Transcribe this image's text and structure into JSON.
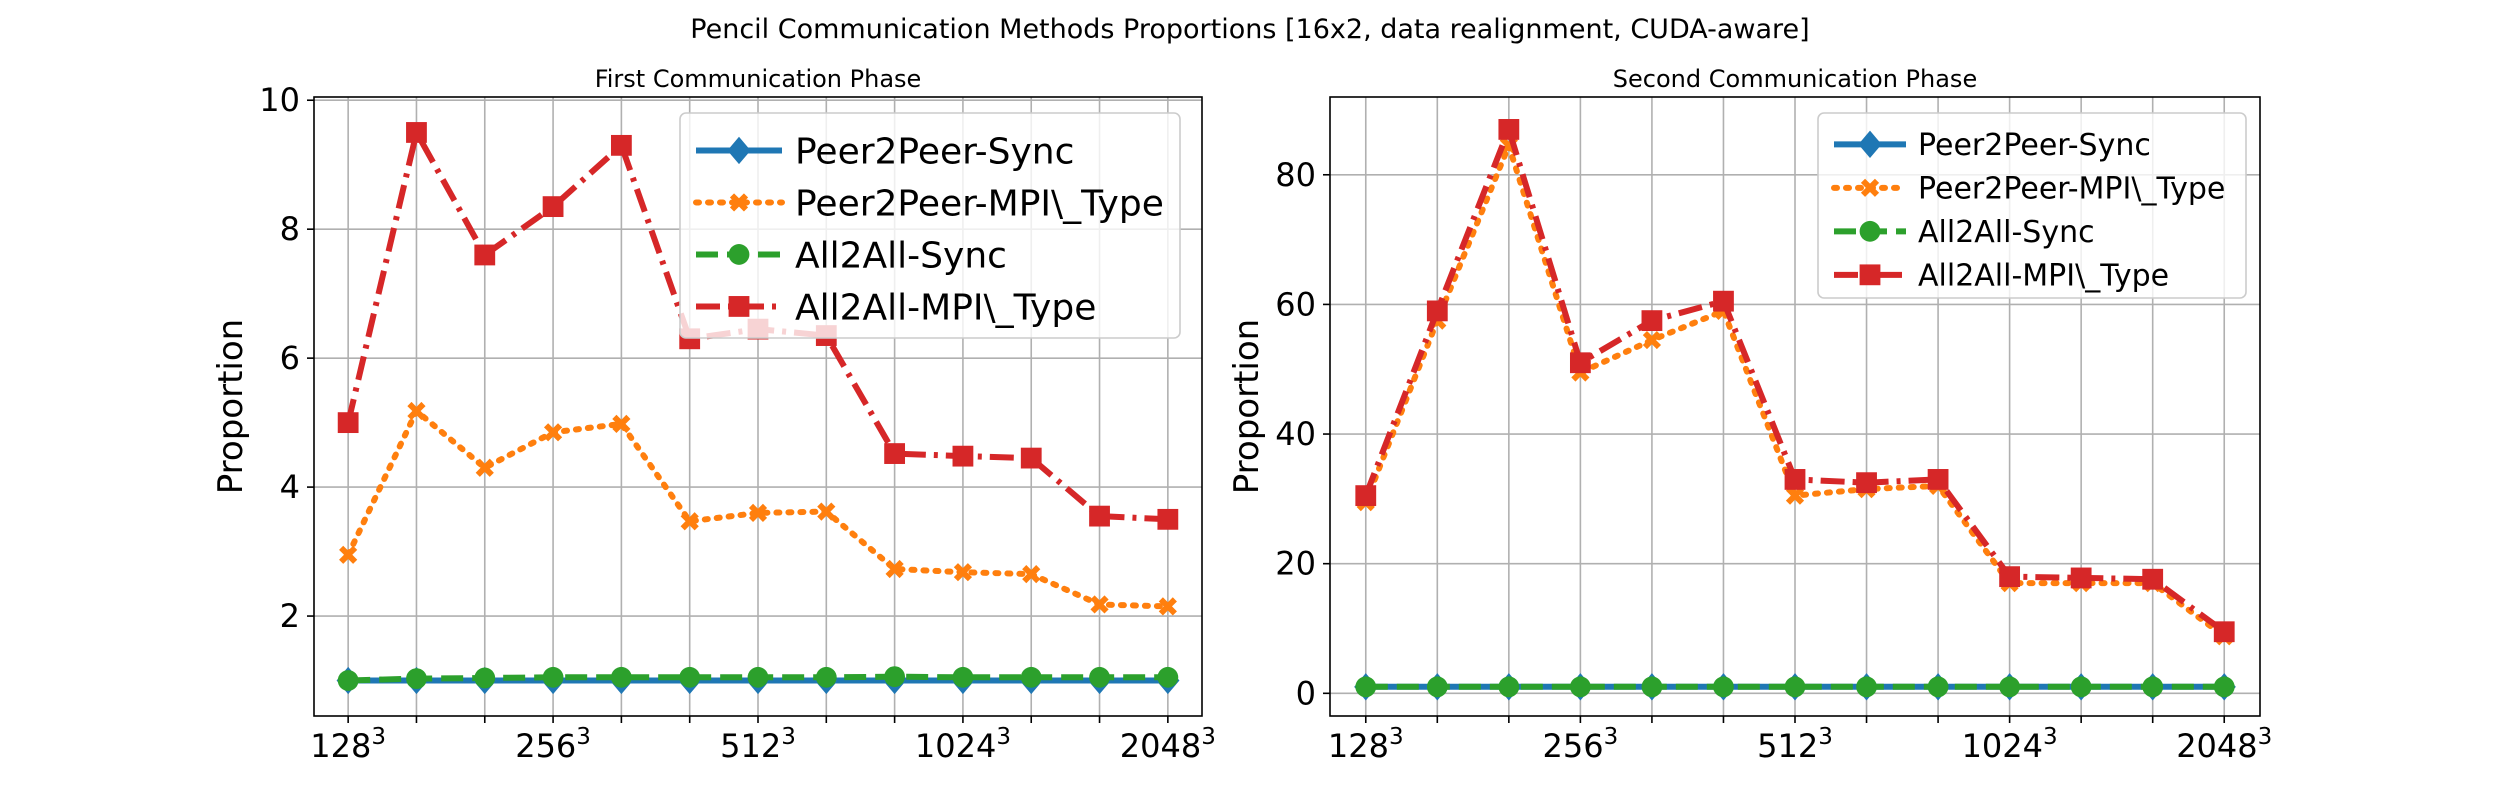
{
  "title": "Pencil Communication Methods Proportions [16x2, data realignment, CUDA-aware]",
  "colors": {
    "Peer2Peer-Sync": "#1f77b4",
    "Peer2Peer-MPI\\_Type": "#ff7f0e",
    "All2All-Sync": "#2ca02c",
    "All2All-MPI\\_Type": "#d62728"
  },
  "chart_data": [
    {
      "type": "line",
      "title": "First Communication Phase",
      "xlabel": "",
      "ylabel": "Proportion",
      "x": [
        1,
        2,
        3,
        4,
        5,
        6,
        7,
        8,
        9,
        10,
        11,
        12,
        13
      ],
      "x_ticks": [
        {
          "x": 1,
          "label": "128",
          "exp": "3"
        },
        {
          "x": 4,
          "label": "256",
          "exp": "3"
        },
        {
          "x": 7,
          "label": "512",
          "exp": "3"
        },
        {
          "x": 10,
          "label": "1024",
          "exp": "3"
        },
        {
          "x": 13,
          "label": "2048",
          "exp": "3"
        }
      ],
      "y_ticks": [
        2,
        4,
        6,
        8,
        10
      ],
      "xlim": [
        0.5,
        13.5
      ],
      "ylim": [
        0.45,
        10.05
      ],
      "grid": true,
      "legend_position": "top-right",
      "series": [
        {
          "name": "Peer2Peer-Sync",
          "marker": "diamond",
          "dash": "solid",
          "values": [
            1,
            1,
            1,
            1,
            1,
            1,
            1,
            1,
            1,
            1,
            1,
            1,
            1
          ]
        },
        {
          "name": "Peer2Peer-MPI\\_Type",
          "marker": "x",
          "dash": "dotted",
          "values": [
            2.95,
            5.18,
            4.3,
            4.85,
            4.98,
            3.47,
            3.6,
            3.62,
            2.73,
            2.68,
            2.65,
            2.18,
            2.15
          ]
        },
        {
          "name": "All2All-Sync",
          "marker": "circle",
          "dash": "dashed",
          "values": [
            1,
            1.03,
            1.04,
            1.05,
            1.05,
            1.05,
            1.05,
            1.05,
            1.06,
            1.05,
            1.05,
            1.05,
            1.05
          ]
        },
        {
          "name": "All2All-MPI\\_Type",
          "marker": "square",
          "dash": "dashdot",
          "values": [
            5.0,
            9.5,
            7.6,
            8.35,
            9.3,
            6.3,
            6.45,
            6.35,
            4.52,
            4.48,
            4.45,
            3.55,
            3.5
          ]
        }
      ]
    },
    {
      "type": "line",
      "title": "Second Communication Phase",
      "xlabel": "",
      "ylabel": "Proportion",
      "x": [
        1,
        2,
        3,
        4,
        5,
        6,
        7,
        8,
        9,
        10,
        11,
        12,
        13
      ],
      "x_ticks": [
        {
          "x": 1,
          "label": "128",
          "exp": "3"
        },
        {
          "x": 4,
          "label": "256",
          "exp": "3"
        },
        {
          "x": 7,
          "label": "512",
          "exp": "3"
        },
        {
          "x": 10,
          "label": "1024",
          "exp": "3"
        },
        {
          "x": 13,
          "label": "2048",
          "exp": "3"
        }
      ],
      "y_ticks": [
        0,
        20,
        40,
        60,
        80
      ],
      "xlim": [
        0.5,
        13.5
      ],
      "ylim": [
        -3.5,
        92
      ],
      "grid": true,
      "legend_position": "top-right",
      "series": [
        {
          "name": "Peer2Peer-Sync",
          "marker": "diamond",
          "dash": "solid",
          "values": [
            1,
            1,
            1,
            1,
            1,
            1,
            1,
            1,
            1,
            1,
            1,
            1,
            1
          ]
        },
        {
          "name": "Peer2Peer-MPI\\_Type",
          "marker": "x",
          "dash": "dotted",
          "values": [
            29.5,
            57.5,
            84.5,
            49.5,
            54.5,
            59,
            30.5,
            31.5,
            32,
            17,
            17,
            17,
            8.8
          ]
        },
        {
          "name": "All2All-Sync",
          "marker": "circle",
          "dash": "dashed",
          "values": [
            1,
            1,
            1,
            1,
            1,
            1,
            1,
            1,
            1,
            1,
            1,
            1,
            1
          ]
        },
        {
          "name": "All2All-MPI\\_Type",
          "marker": "square",
          "dash": "dashdot",
          "values": [
            30.5,
            59,
            87,
            51,
            57.5,
            60.5,
            33,
            32.5,
            33,
            18,
            17.8,
            17.6,
            9.5
          ]
        }
      ]
    }
  ]
}
